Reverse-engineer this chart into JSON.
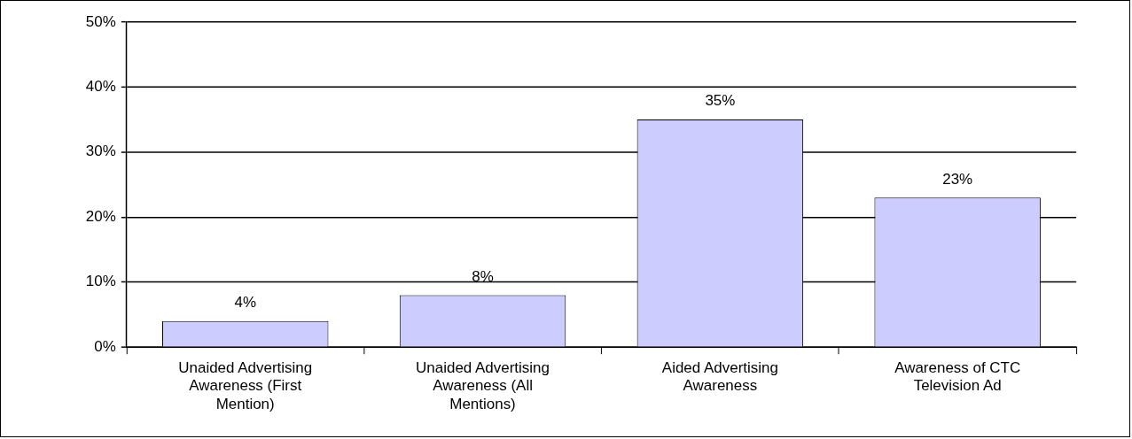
{
  "chart_data": {
    "type": "bar",
    "categories": [
      "Unaided Advertising Awareness (First Mention)",
      "Unaided Advertising Awareness (All Mentions)",
      "Aided Advertising Awareness",
      "Awareness of CTC Television Ad"
    ],
    "values": [
      4,
      8,
      35,
      23
    ],
    "value_labels": [
      "4%",
      "8%",
      "35%",
      "23%"
    ],
    "color": "#ccccff",
    "ylim": [
      0,
      50
    ],
    "yticks": [
      {
        "value": 0,
        "label": "0%"
      },
      {
        "value": 10,
        "label": "10%"
      },
      {
        "value": 20,
        "label": "20%"
      },
      {
        "value": 30,
        "label": "30%"
      },
      {
        "value": 40,
        "label": "40%"
      },
      {
        "value": 50,
        "label": "50%"
      }
    ],
    "grid": "y",
    "legend": false
  }
}
